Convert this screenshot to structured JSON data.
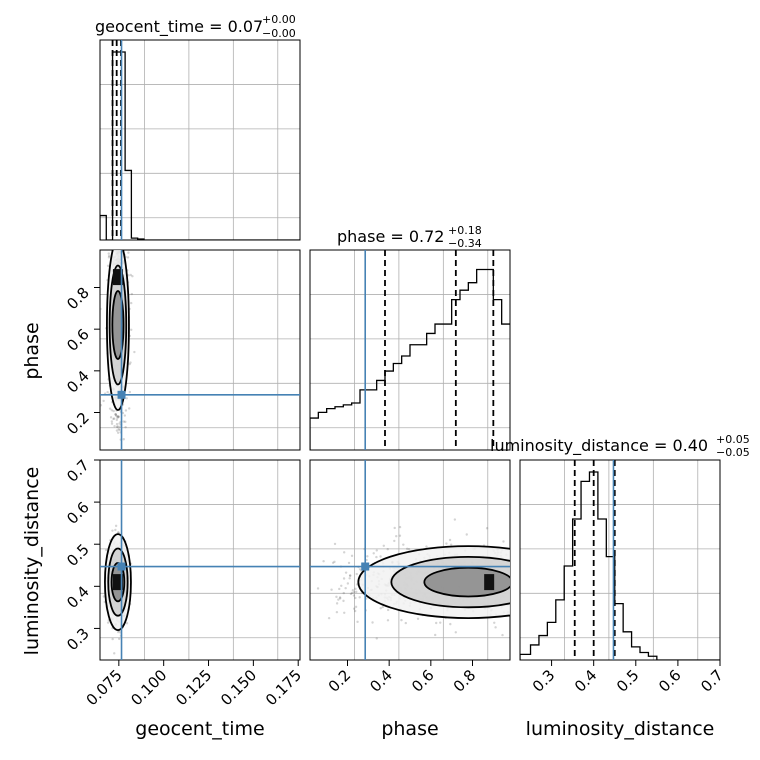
{
  "chart_data": {
    "type": "corner",
    "parameters": [
      "geocent_time",
      "phase",
      "luminosity_distance"
    ],
    "truths": {
      "geocent_time": 0.0765,
      "phase": 0.285,
      "luminosity_distance": 0.447
    },
    "ranges": {
      "geocent_time": [
        0.0645,
        0.176
      ],
      "phase": [
        0.02,
        0.98
      ],
      "luminosity_distance": [
        0.225,
        0.7
      ]
    },
    "titles": {
      "geocent_time": {
        "name": "geocent_time",
        "value": "0.07",
        "plus": "+0.00",
        "minus": "−0.00"
      },
      "phase": {
        "name": "phase",
        "value": "0.72",
        "plus": "+0.18",
        "minus": "−0.34"
      },
      "luminosity_distance": {
        "name": "luminosity_distance",
        "value": "0.40",
        "plus": "+0.05",
        "minus": "−0.05"
      }
    },
    "ticks": {
      "geocent_time": [
        "0.075",
        "0.100",
        "0.125",
        "0.150",
        "0.175"
      ],
      "phase_x": [
        "0.2",
        "0.4",
        "0.6",
        "0.8"
      ],
      "phase_y": [
        "0.2",
        "0.4",
        "0.6",
        "0.8"
      ],
      "luminosity_distance_x": [
        "0.3",
        "0.4",
        "0.5",
        "0.6",
        "0.7"
      ],
      "luminosity_distance_y": [
        "0.3",
        "0.4",
        "0.5",
        "0.6",
        "0.7"
      ]
    },
    "axis_labels": {
      "x": [
        "geocent_time",
        "phase",
        "luminosity_distance"
      ],
      "y": [
        "phase",
        "luminosity_distance"
      ]
    },
    "quantiles": {
      "geocent_time": [
        0.0715,
        0.0738,
        0.0762
      ],
      "phase": [
        0.38,
        0.72,
        0.9
      ],
      "luminosity_distance": [
        0.355,
        0.4,
        0.45
      ]
    },
    "histograms": {
      "geocent_time": {
        "edges": [
          0.0645,
          0.068,
          0.0715,
          0.075,
          0.0785,
          0.082,
          0.0855,
          0.089,
          0.176
        ],
        "counts": [
          0.13,
          0.0,
          1.0,
          1.0,
          0.37,
          0.01,
          0.005,
          0.0
        ]
      },
      "phase": {
        "edges": [
          0.02,
          0.06,
          0.1,
          0.14,
          0.18,
          0.22,
          0.26,
          0.3,
          0.34,
          0.38,
          0.42,
          0.46,
          0.5,
          0.54,
          0.58,
          0.62,
          0.66,
          0.7,
          0.74,
          0.78,
          0.82,
          0.86,
          0.9,
          0.94,
          0.98
        ],
        "counts": [
          0.17,
          0.2,
          0.22,
          0.23,
          0.24,
          0.25,
          0.32,
          0.32,
          0.37,
          0.42,
          0.46,
          0.5,
          0.56,
          0.56,
          0.62,
          0.67,
          0.67,
          0.8,
          0.85,
          0.89,
          0.96,
          0.96,
          0.8,
          0.67
        ]
      },
      "luminosity_distance": {
        "edges": [
          0.225,
          0.25,
          0.27,
          0.29,
          0.31,
          0.33,
          0.35,
          0.37,
          0.39,
          0.41,
          0.43,
          0.45,
          0.47,
          0.49,
          0.51,
          0.53,
          0.55,
          0.7
        ],
        "counts": [
          0.03,
          0.08,
          0.13,
          0.2,
          0.32,
          0.5,
          0.75,
          0.95,
          1.0,
          0.75,
          0.55,
          0.3,
          0.15,
          0.07,
          0.04,
          0.02,
          0.0
        ]
      }
    },
    "grid": true
  }
}
